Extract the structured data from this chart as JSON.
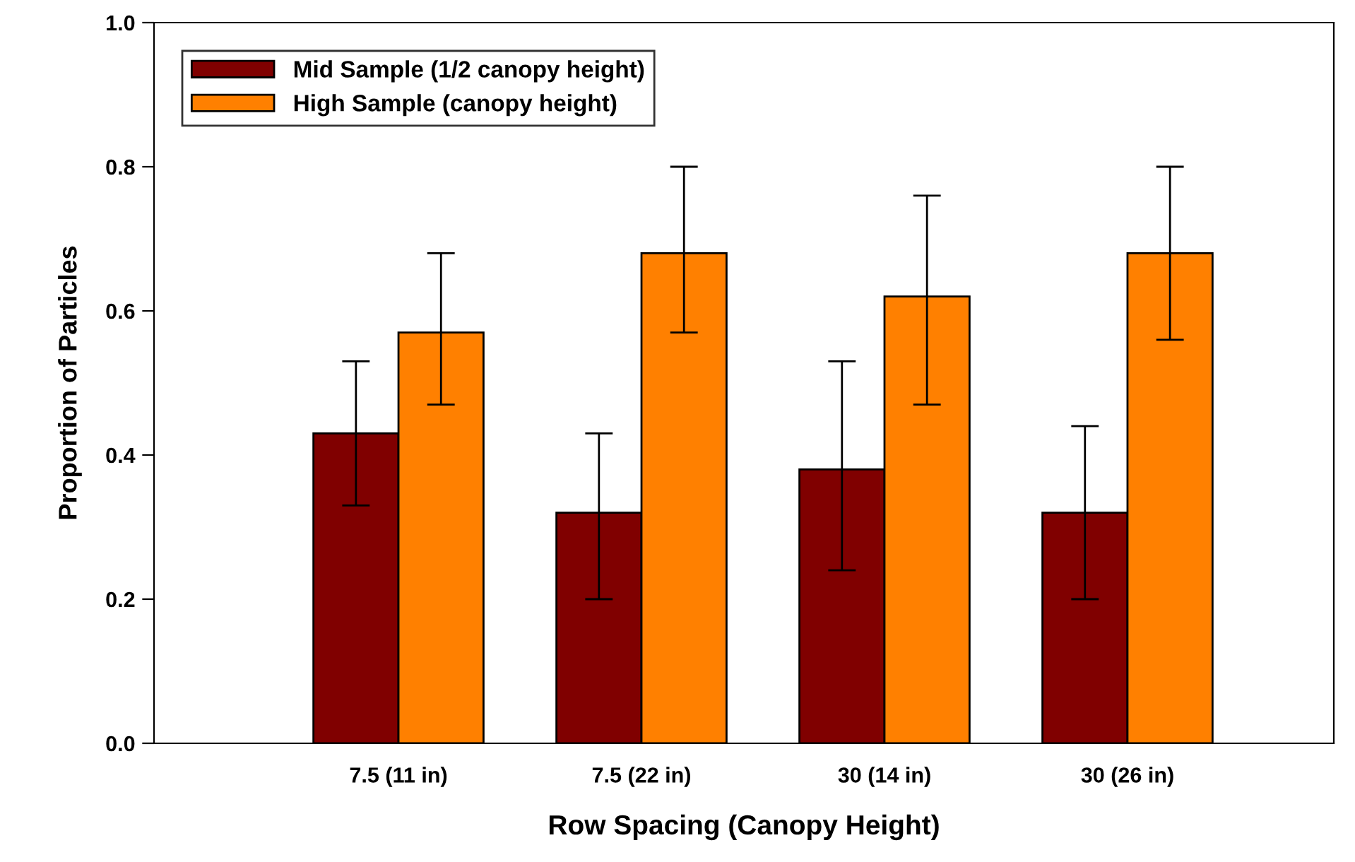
{
  "chart_data": {
    "type": "bar",
    "xlabel": "Row Spacing (Canopy Height)",
    "ylabel": "Proportion of Particles",
    "categories": [
      "7.5 (11 in)",
      "7.5 (22 in)",
      "30 (14 in)",
      "30 (26 in)"
    ],
    "series": [
      {
        "name": "Mid Sample (1/2 canopy height)",
        "color": "#800000",
        "values": [
          0.43,
          0.32,
          0.38,
          0.32
        ],
        "errors": [
          [
            0.33,
            0.53
          ],
          [
            0.2,
            0.43
          ],
          [
            0.24,
            0.53
          ],
          [
            0.2,
            0.44
          ]
        ]
      },
      {
        "name": "High Sample (canopy height)",
        "color": "#ff8000",
        "values": [
          0.57,
          0.68,
          0.62,
          0.68
        ],
        "errors": [
          [
            0.47,
            0.68
          ],
          [
            0.57,
            0.8
          ],
          [
            0.47,
            0.76
          ],
          [
            0.56,
            0.8
          ]
        ]
      }
    ],
    "ylim": [
      0,
      1.0
    ],
    "yticks": [
      {
        "value": 0,
        "label": "0.0"
      },
      0.2,
      0.4,
      0.6,
      0.8,
      {
        "value": 1.0,
        "label": "1.0"
      }
    ],
    "grid": false,
    "legend": "top left"
  }
}
